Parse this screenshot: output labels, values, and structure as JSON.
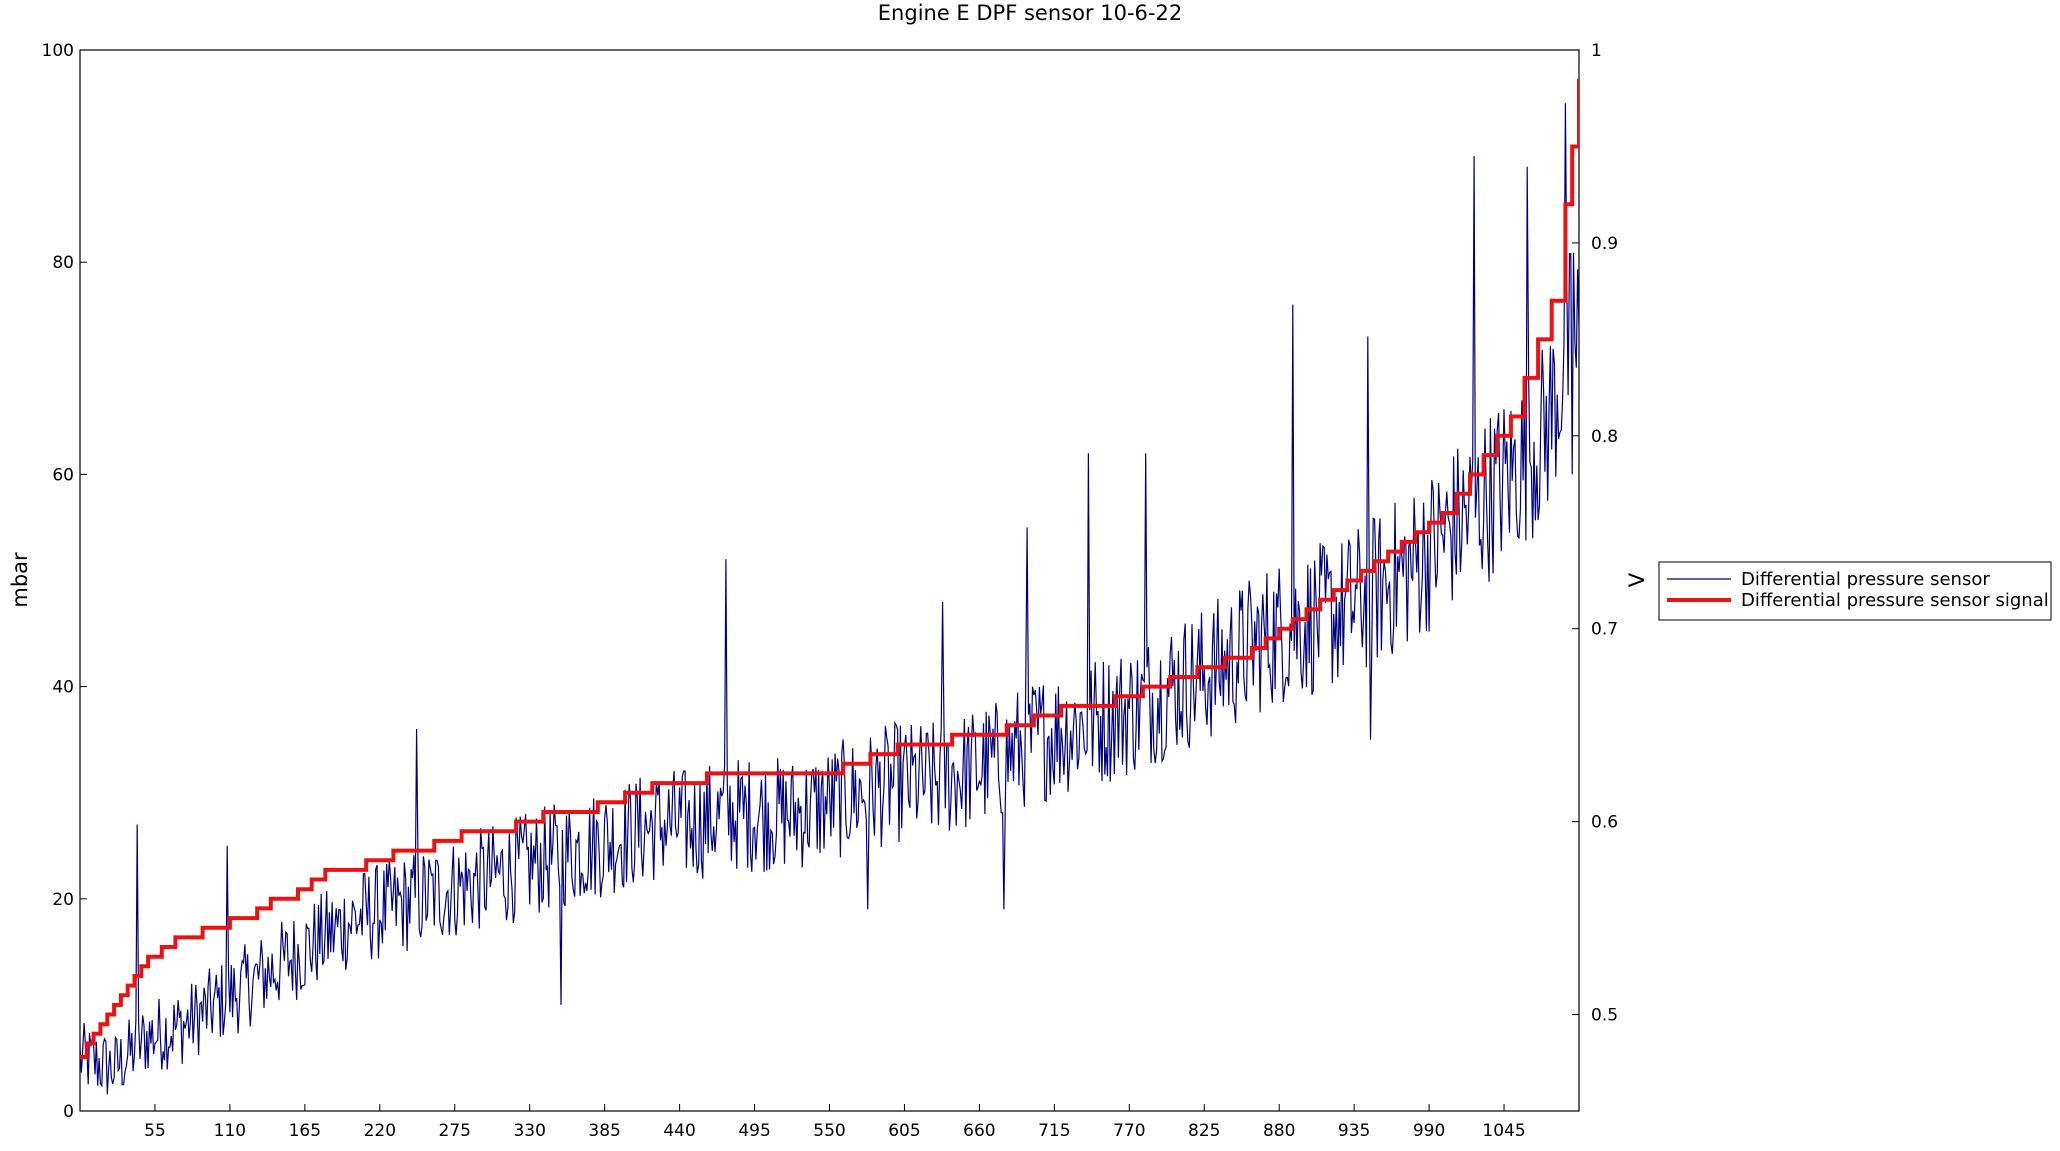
{
  "chart_data": {
    "type": "line",
    "title": "Engine E DPF sensor 10-6-22",
    "ylabel_left": "mbar",
    "ylabel_right": "V",
    "xlabel": "",
    "xlim": [
      0,
      1100
    ],
    "ylim_left": [
      0,
      100
    ],
    "ylim_right": [
      0.45,
      1.0
    ],
    "x_ticks": [
      "55",
      "110",
      "165",
      "220",
      "275",
      "330",
      "385",
      "440",
      "495",
      "550",
      "605",
      "660",
      "715",
      "770",
      "825",
      "880",
      "935",
      "990",
      "1045"
    ],
    "y_left_ticks": [
      "0",
      "20",
      "40",
      "60",
      "80",
      "100"
    ],
    "y_right_ticks": [
      "0.5",
      "0.6",
      "0.7",
      "0.8",
      "0.9",
      "1"
    ],
    "grid": false,
    "legend_position": "right, outside plot at mid-height",
    "series": [
      {
        "name": "Differential pressure sensor",
        "axis": "left",
        "color": "#000080",
        "x": [
          0,
          25,
          50,
          75,
          100,
          125,
          150,
          175,
          200,
          225,
          250,
          275,
          300,
          325,
          350,
          375,
          400,
          425,
          450,
          475,
          500,
          525,
          550,
          575,
          600,
          625,
          650,
          675,
          700,
          725,
          750,
          775,
          800,
          825,
          850,
          875,
          900,
          925,
          950,
          975,
          1000,
          1025,
          1050,
          1075,
          1100
        ],
        "values": [
          5,
          4,
          7,
          8,
          10,
          12,
          14,
          16,
          18,
          19,
          20,
          21,
          22,
          23,
          24,
          25,
          26,
          27,
          27,
          28,
          28,
          28,
          29,
          30,
          31,
          31,
          32,
          33,
          35,
          36,
          37,
          38,
          40,
          41,
          43,
          45,
          46,
          47,
          49,
          51,
          54,
          57,
          60,
          64,
          75
        ],
        "spikes": [
          {
            "x": 42,
            "y": 27
          },
          {
            "x": 108,
            "y": 25
          },
          {
            "x": 247,
            "y": 36
          },
          {
            "x": 353,
            "y": 10
          },
          {
            "x": 474,
            "y": 52
          },
          {
            "x": 578,
            "y": 19
          },
          {
            "x": 633,
            "y": 48
          },
          {
            "x": 678,
            "y": 19
          },
          {
            "x": 695,
            "y": 55
          },
          {
            "x": 740,
            "y": 62
          },
          {
            "x": 782,
            "y": 62
          },
          {
            "x": 890,
            "y": 76
          },
          {
            "x": 945,
            "y": 73
          },
          {
            "x": 947,
            "y": 35
          },
          {
            "x": 1023,
            "y": 90
          },
          {
            "x": 1062,
            "y": 89
          },
          {
            "x": 1090,
            "y": 95
          },
          {
            "x": 1095,
            "y": 60
          }
        ]
      },
      {
        "name": "Differential pressure sensor signal",
        "axis": "right",
        "color": "#ee1111",
        "x": [
          0,
          5,
          10,
          15,
          20,
          25,
          30,
          35,
          40,
          45,
          50,
          60,
          70,
          80,
          90,
          100,
          110,
          120,
          130,
          140,
          150,
          160,
          170,
          180,
          190,
          210,
          230,
          250,
          260,
          280,
          300,
          320,
          340,
          360,
          380,
          400,
          420,
          440,
          460,
          480,
          500,
          520,
          540,
          560,
          580,
          600,
          620,
          640,
          660,
          680,
          700,
          720,
          740,
          760,
          780,
          800,
          820,
          840,
          860,
          870,
          880,
          890,
          900,
          910,
          920,
          930,
          940,
          950,
          960,
          970,
          980,
          990,
          1000,
          1010,
          1020,
          1030,
          1040,
          1050,
          1060,
          1070,
          1080,
          1090,
          1095,
          1100
        ],
        "values": [
          0.478,
          0.485,
          0.49,
          0.495,
          0.5,
          0.505,
          0.51,
          0.515,
          0.52,
          0.525,
          0.53,
          0.535,
          0.54,
          0.54,
          0.545,
          0.545,
          0.55,
          0.55,
          0.555,
          0.56,
          0.56,
          0.565,
          0.57,
          0.575,
          0.575,
          0.58,
          0.585,
          0.585,
          0.59,
          0.595,
          0.595,
          0.6,
          0.605,
          0.605,
          0.61,
          0.615,
          0.62,
          0.62,
          0.625,
          0.625,
          0.625,
          0.625,
          0.625,
          0.63,
          0.635,
          0.64,
          0.64,
          0.645,
          0.645,
          0.65,
          0.655,
          0.66,
          0.66,
          0.665,
          0.67,
          0.675,
          0.68,
          0.685,
          0.69,
          0.695,
          0.7,
          0.705,
          0.71,
          0.715,
          0.72,
          0.725,
          0.73,
          0.735,
          0.74,
          0.745,
          0.75,
          0.755,
          0.76,
          0.77,
          0.78,
          0.79,
          0.8,
          0.81,
          0.83,
          0.85,
          0.87,
          0.92,
          0.95,
          0.985
        ]
      }
    ]
  }
}
